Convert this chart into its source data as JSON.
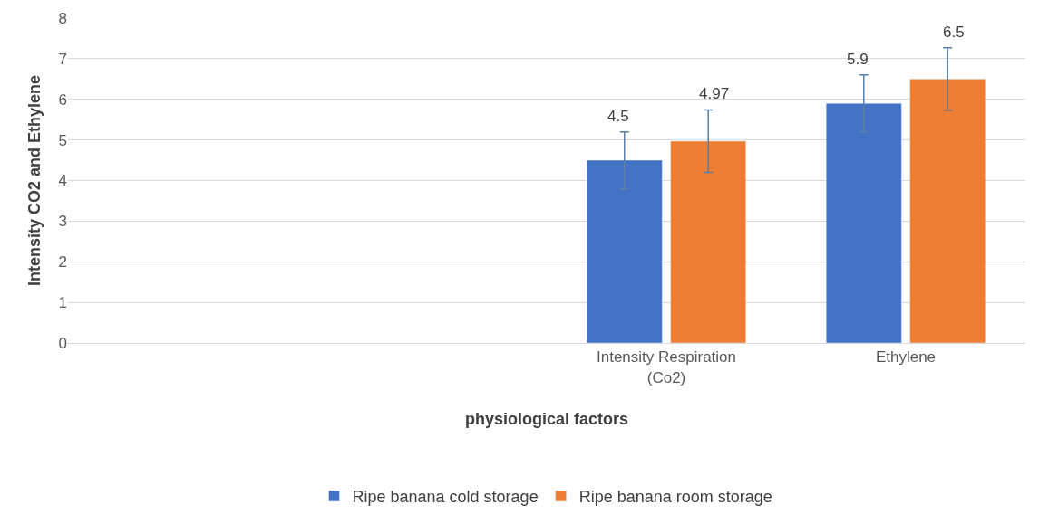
{
  "chart_data": {
    "type": "bar",
    "xlabel": "physiological factors",
    "ylabel": "Intensity CO2 and Ethylene",
    "categories": [
      null,
      null,
      "Intensity Respiration (Co2)",
      "Ethylene"
    ],
    "series": [
      {
        "name": "Ripe banana cold storage",
        "color": "#4472c4",
        "values": [
          null,
          null,
          4.5,
          5.9
        ],
        "errors": [
          null,
          null,
          0.7,
          0.7
        ]
      },
      {
        "name": "Ripe banana room storage",
        "color": "#ed7d31",
        "values": [
          null,
          null,
          4.97,
          6.5
        ],
        "errors": [
          null,
          null,
          0.77,
          0.77
        ]
      }
    ],
    "ylim": [
      0,
      8
    ],
    "yticks": [
      0,
      1,
      2,
      3,
      4,
      5,
      6,
      7,
      8
    ],
    "grid": "y",
    "legend": "bottom",
    "data_labels": true
  }
}
